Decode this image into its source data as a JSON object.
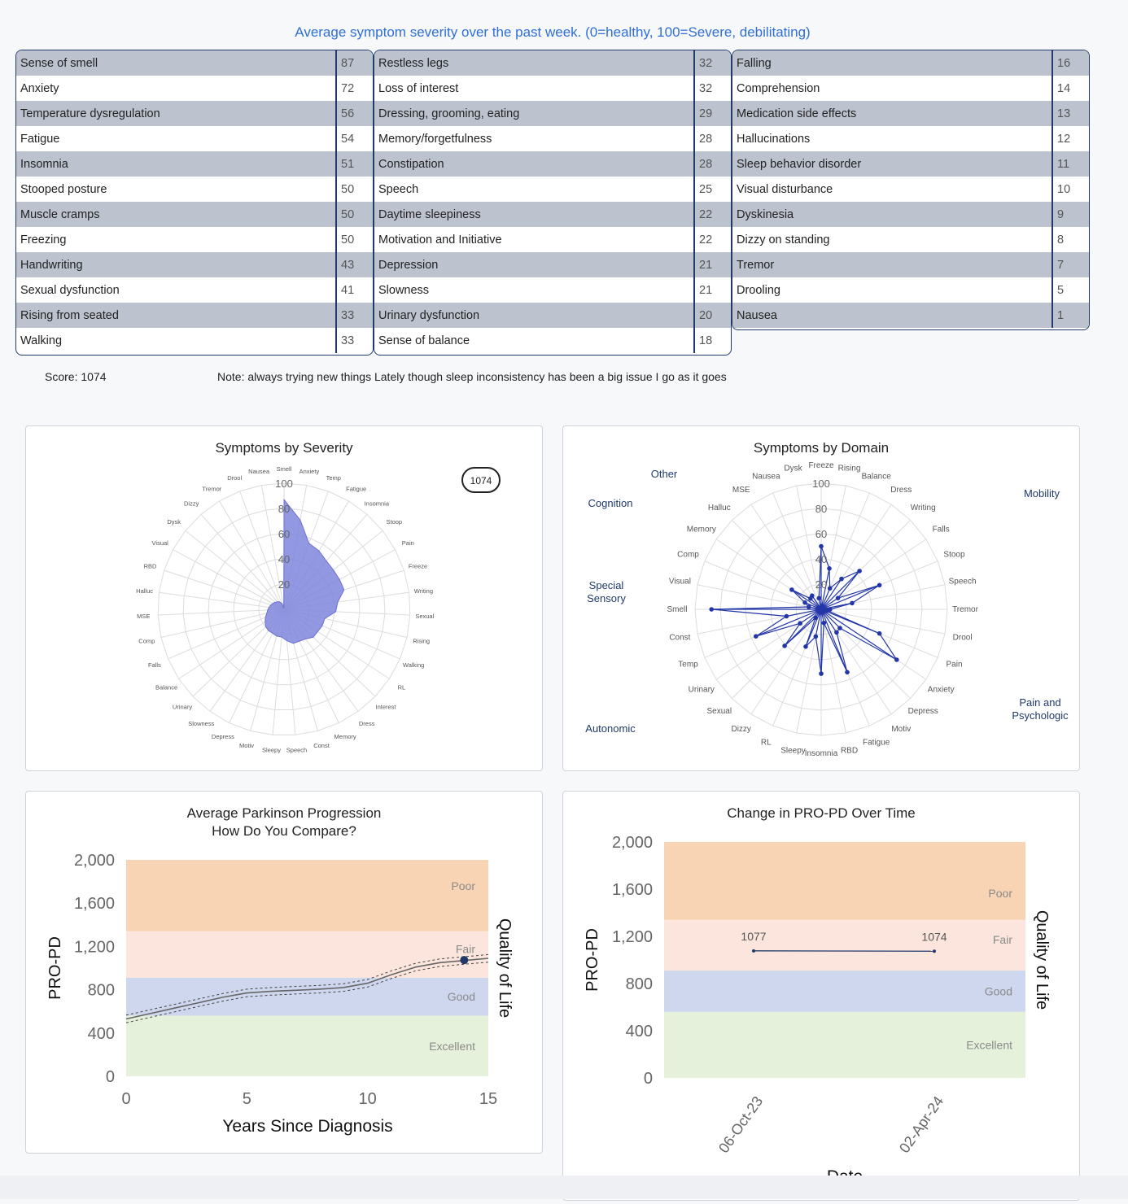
{
  "header": {
    "title": "Average symptom severity over the past week. (0=healthy, 100=Severe, debilitating)"
  },
  "tables": [
    [
      [
        "Sense of smell",
        87
      ],
      [
        "Anxiety",
        72
      ],
      [
        "Temperature dysregulation",
        56
      ],
      [
        "Fatigue",
        54
      ],
      [
        "Insomnia",
        51
      ],
      [
        "Stooped posture",
        50
      ],
      [
        "Muscle cramps",
        50
      ],
      [
        "Freezing",
        50
      ],
      [
        "Handwriting",
        43
      ],
      [
        "Sexual dysfunction",
        41
      ],
      [
        "Rising from seated",
        33
      ],
      [
        "Walking",
        33
      ]
    ],
    [
      [
        "Restless legs",
        32
      ],
      [
        "Loss of interest",
        32
      ],
      [
        "Dressing, grooming, eating",
        29
      ],
      [
        "Memory/forgetfulness",
        28
      ],
      [
        "Constipation",
        28
      ],
      [
        "Speech",
        25
      ],
      [
        "Daytime sleepiness",
        22
      ],
      [
        "Motivation and Initiative",
        22
      ],
      [
        "Depression",
        21
      ],
      [
        "Slowness",
        21
      ],
      [
        "Urinary dysfunction",
        20
      ],
      [
        "Sense of balance",
        18
      ]
    ],
    [
      [
        "Falling",
        16
      ],
      [
        "Comprehension",
        14
      ],
      [
        "Medication side effects",
        13
      ],
      [
        "Hallucinations",
        12
      ],
      [
        "Sleep behavior disorder",
        11
      ],
      [
        "Visual disturbance",
        10
      ],
      [
        "Dyskinesia",
        9
      ],
      [
        "Dizzy on standing",
        8
      ],
      [
        "Tremor",
        7
      ],
      [
        "Drooling",
        5
      ],
      [
        "Nausea",
        1
      ]
    ]
  ],
  "summary": {
    "score": "Score: 1074",
    "note": "Note: always trying new things Lately though sleep inconsistency has been a big issue I go as it goes"
  },
  "colors": {
    "poor": "#f8d4b4",
    "fair": "#fbe5dc",
    "good": "#cfd7ee",
    "excellent": "#e5f1db",
    "radar_fill": "#7f86dc",
    "domain_line": "#2336a8",
    "header": "#2f6fd6",
    "navy": "#1f3a6b"
  },
  "chart_data": [
    {
      "type": "radar",
      "title": "Symptoms by Severity",
      "badge": "1074",
      "rlim": [
        0,
        100
      ],
      "ticks": [
        20,
        40,
        60,
        80,
        100
      ],
      "categories": [
        "Smell",
        "Anxiety",
        "Temp",
        "Fatigue",
        "Insomnia",
        "Stoop",
        "Pain",
        "Freeze",
        "Writing",
        "Sexual",
        "Rising",
        "Walking",
        "RL",
        "Interest",
        "Dress",
        "Memory",
        "Const",
        "Speech",
        "Sleepy",
        "Motiv",
        "Depress",
        "Slowness",
        "Urinary",
        "Balance",
        "Falls",
        "Comp",
        "MSE",
        "Halluc",
        "RBD",
        "Visual",
        "Dysk",
        "Dizzy",
        "Tremor",
        "Drool",
        "Nausea"
      ],
      "values": [
        87,
        72,
        56,
        54,
        51,
        50,
        50,
        50,
        43,
        41,
        33,
        33,
        32,
        32,
        29,
        28,
        28,
        25,
        22,
        22,
        21,
        21,
        20,
        18,
        16,
        14,
        13,
        12,
        11,
        10,
        9,
        8,
        7,
        5,
        1
      ]
    },
    {
      "type": "radar",
      "title": "Symptoms by Domain",
      "rlim": [
        0,
        100
      ],
      "ticks": [
        20,
        40,
        60,
        80,
        100
      ],
      "domains": [
        "Other",
        "Mobility",
        "Pain and Psychologic",
        "Autonomic",
        "Special Sensory",
        "Cognition"
      ],
      "categories": [
        "Freeze",
        "Rising",
        "Balance",
        "Dress",
        "Writing",
        "Falls",
        "Stoop",
        "Speech",
        "Tremor",
        "Drool",
        "Pain",
        "Anxiety",
        "Depress",
        "Motiv",
        "Fatigue",
        "RBD",
        "Insomnia",
        "Sleepy",
        "RL",
        "Dizzy",
        "Sexual",
        "Urinary",
        "Temp",
        "Const",
        "Smell",
        "Visual",
        "Comp",
        "Memory",
        "Halluc",
        "MSE",
        "Nausea",
        "Dysk"
      ],
      "values": [
        50,
        33,
        18,
        29,
        43,
        16,
        50,
        25,
        7,
        5,
        50,
        72,
        21,
        22,
        54,
        11,
        51,
        22,
        32,
        8,
        41,
        20,
        56,
        28,
        87,
        10,
        14,
        28,
        12,
        13,
        1,
        9
      ]
    },
    {
      "type": "line",
      "title": "Average Parkinson Progression",
      "subtitle": "How Do You Compare?",
      "xlabel": "Years Since Diagnosis",
      "ylabel": "PRO-PD",
      "y2label": "Quality of Life",
      "xlim": [
        0,
        15
      ],
      "ylim": [
        0,
        2000
      ],
      "xticks": [
        "0",
        "5",
        "10",
        "15"
      ],
      "yticks": [
        "0",
        "400",
        "800",
        "1,200",
        "1,600",
        "2,000"
      ],
      "bands": [
        {
          "name": "Excellent",
          "from": 0,
          "to": 560
        },
        {
          "name": "Good",
          "from": 560,
          "to": 910
        },
        {
          "name": "Fair",
          "from": 910,
          "to": 1340
        },
        {
          "name": "Poor",
          "from": 1340,
          "to": 2000
        }
      ],
      "series": [
        {
          "x": [
            0,
            1,
            2,
            3,
            4,
            5,
            6,
            7,
            8,
            9,
            10,
            11,
            12,
            13,
            14,
            15
          ],
          "y": [
            530,
            580,
            630,
            680,
            730,
            770,
            785,
            795,
            805,
            820,
            860,
            940,
            1010,
            1050,
            1070,
            1090
          ]
        }
      ],
      "point": {
        "x": 14,
        "y": 1074
      }
    },
    {
      "type": "line",
      "title": "Change in PRO-PD Over Time",
      "xlabel": "Date",
      "ylabel": "PRO-PD",
      "y2label": "Quality of Life",
      "ylim": [
        0,
        2000
      ],
      "yticks": [
        "0",
        "400",
        "800",
        "1,200",
        "1,600",
        "2,000"
      ],
      "bands": [
        {
          "name": "Excellent",
          "from": 0,
          "to": 560
        },
        {
          "name": "Good",
          "from": 560,
          "to": 910
        },
        {
          "name": "Fair",
          "from": 910,
          "to": 1340
        },
        {
          "name": "Poor",
          "from": 1340,
          "to": 2000
        }
      ],
      "categories": [
        "06-Oct-23",
        "02-Apr-24"
      ],
      "values": [
        1077,
        1074
      ]
    }
  ]
}
